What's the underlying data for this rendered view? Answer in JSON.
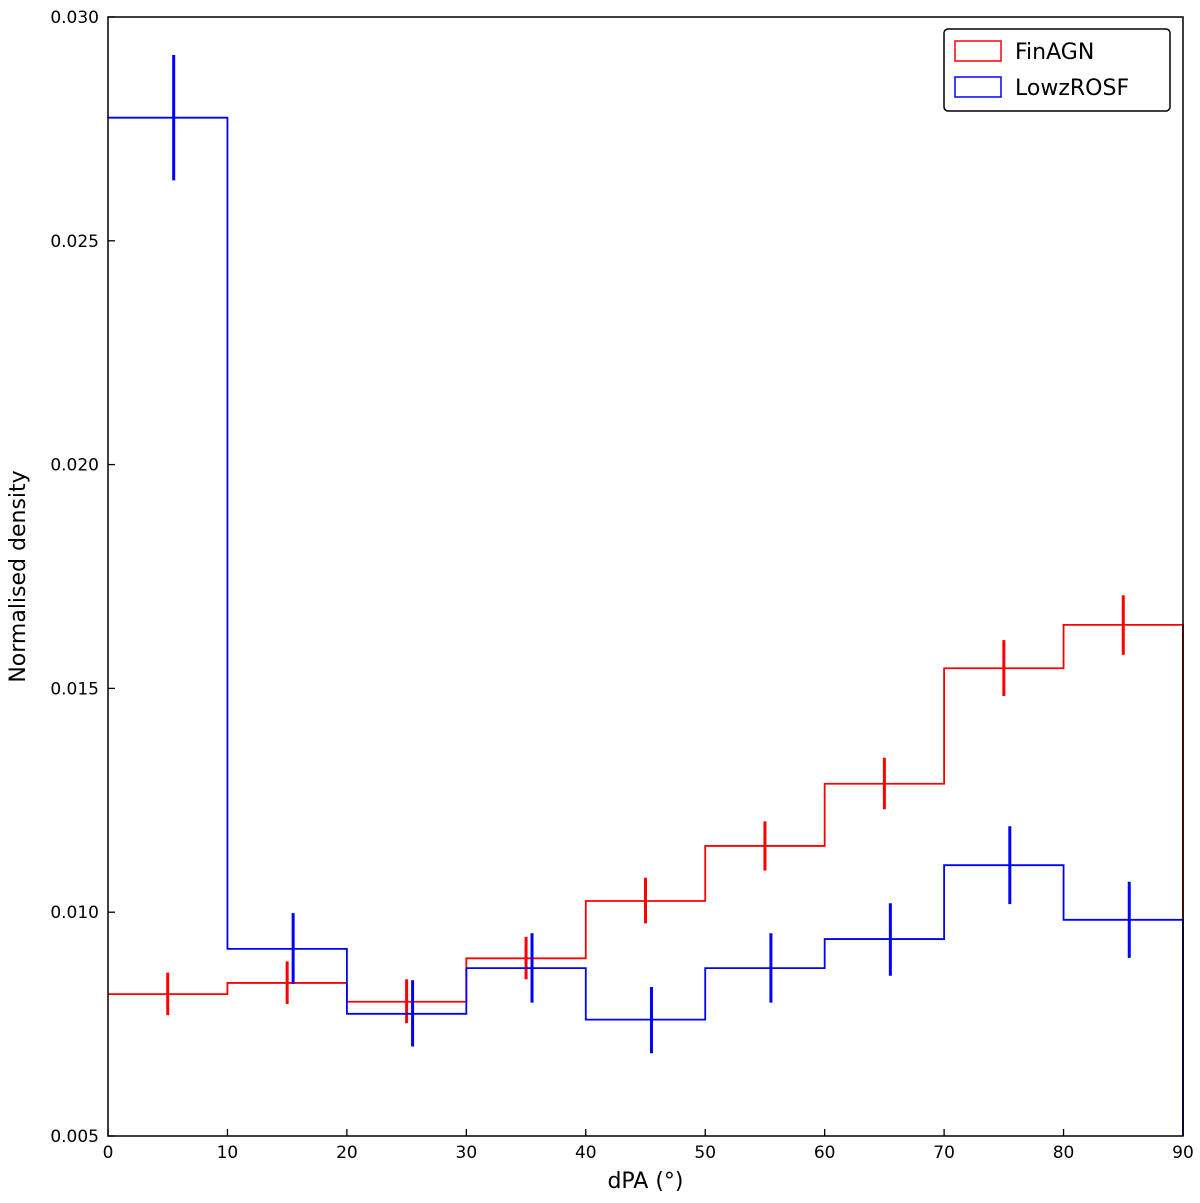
{
  "chart_data": {
    "type": "histogram",
    "xlabel": "dPA (°)",
    "ylabel": "Normalised density",
    "xlim": [
      0,
      90
    ],
    "ylim": [
      0.005,
      0.03
    ],
    "xticks": [
      0,
      10,
      20,
      30,
      40,
      50,
      60,
      70,
      80,
      90
    ],
    "xtick_labels": [
      "0",
      "10",
      "20",
      "30",
      "40",
      "50",
      "60",
      "70",
      "80",
      "90"
    ],
    "yticks": [
      0.005,
      0.01,
      0.015,
      0.02,
      0.025,
      0.03
    ],
    "ytick_labels": [
      "0.005",
      "0.010",
      "0.015",
      "0.020",
      "0.025",
      "0.030"
    ],
    "grid": false,
    "legend_position": "top-right",
    "bin_edges": [
      0,
      10,
      20,
      30,
      40,
      50,
      60,
      70,
      80,
      90
    ],
    "series": [
      {
        "name": "FinAGN",
        "color": "#ff0000",
        "values": [
          0.00817,
          0.00842,
          0.008,
          0.00897,
          0.01025,
          0.01148,
          0.01287,
          0.01545,
          0.01642
        ],
        "errorbar_x": [
          5,
          15,
          25,
          35,
          45,
          55,
          65,
          75,
          85
        ],
        "errorbar_low": [
          0.0077,
          0.00795,
          0.00752,
          0.0085,
          0.00975,
          0.01093,
          0.0123,
          0.01483,
          0.01575
        ],
        "errorbar_high": [
          0.00865,
          0.0089,
          0.0085,
          0.00945,
          0.01077,
          0.01203,
          0.01345,
          0.01608,
          0.01708
        ]
      },
      {
        "name": "LowzROSF",
        "color": "#0000ff",
        "values": [
          0.02775,
          0.00918,
          0.00773,
          0.00875,
          0.0076,
          0.00875,
          0.0094,
          0.01105,
          0.00983
        ],
        "errorbar_x": [
          5.5,
          15.5,
          25.5,
          35.5,
          45.5,
          55.5,
          65.5,
          75.5,
          85.5
        ],
        "errorbar_low": [
          0.02635,
          0.0084,
          0.007,
          0.00798,
          0.00685,
          0.00798,
          0.00858,
          0.01018,
          0.00898
        ],
        "errorbar_high": [
          0.02915,
          0.00998,
          0.00848,
          0.00953,
          0.00833,
          0.00953,
          0.0102,
          0.01192,
          0.01068
        ]
      }
    ]
  }
}
